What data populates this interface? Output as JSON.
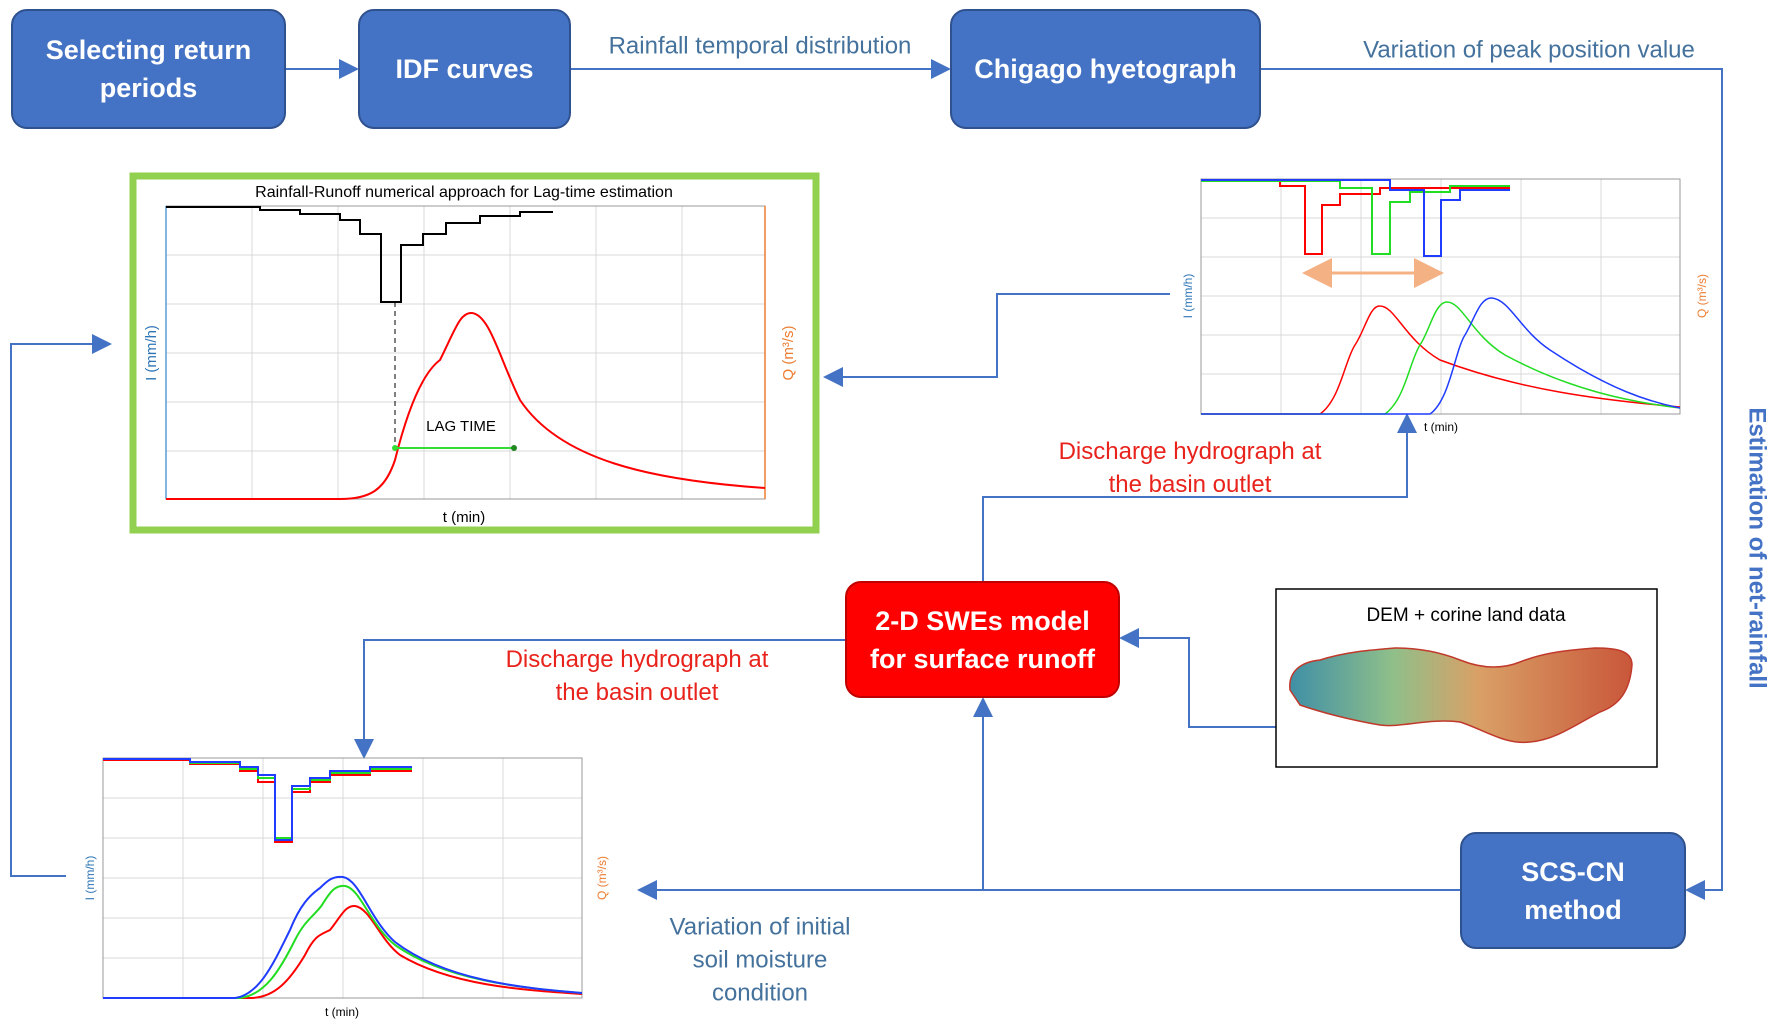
{
  "nodes": [
    {
      "lines": [
        "Selecting return",
        "periods"
      ]
    },
    {
      "lines": [
        "IDF curves"
      ]
    },
    {
      "lines": [
        "Chigago hyetograph"
      ]
    },
    {
      "lines": [
        "2-D SWEs model",
        "for surface runoff"
      ]
    },
    {
      "lines": [
        "SCS-CN",
        "method"
      ]
    }
  ],
  "edges": [
    {
      "lines": [
        "Rainfall temporal distribution"
      ]
    },
    {
      "lines": [
        "Variation of peak position value"
      ]
    },
    {
      "lines": [
        "Estimation of net-rainfall"
      ]
    },
    {
      "lines": [
        "Discharge hydrograph at",
        "the basin outlet"
      ]
    },
    {
      "lines": [
        "Discharge hydrograph at",
        "the basin outlet"
      ]
    },
    {
      "lines": [
        "Variation of initial",
        "soil moisture",
        "condition"
      ]
    }
  ],
  "panels": {
    "lag_chart": {
      "title": "Rainfall-Runoff numerical approach for Lag-time estimation",
      "y_label": "I (mm/h)",
      "y2_label": "Q (m³/s)",
      "x_label": "t (min)",
      "annotation": "LAG TIME"
    },
    "peak_chart": {
      "y_label": "I (mm/h)",
      "y2_label": "Q (m³/s)",
      "x_label": "t (min)"
    },
    "moisture_chart": {
      "y_label": "I (mm/h)",
      "y2_label": "Q (m³/s)",
      "x_label": "t (min)"
    },
    "dem": {
      "title": "DEM + corine land data"
    }
  }
}
